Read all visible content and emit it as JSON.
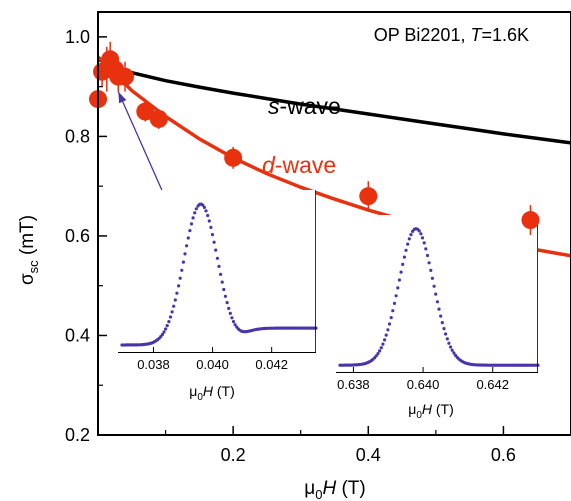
{
  "chart_data": {
    "type": "scatter",
    "title": {
      "main": "OP Bi2201, ",
      "T_symbol": "T",
      "T_value": "=1.6K"
    },
    "xlabel": {
      "mu": "μ",
      "sub": "0",
      "H": "H",
      "unit": " (T)"
    },
    "ylabel": {
      "sigma": "σ",
      "sub": "sc",
      "unit": " (mT)"
    },
    "xlim": [
      0.0,
      0.7
    ],
    "ylim": [
      0.2,
      1.05
    ],
    "x_ticks": [
      0.2,
      0.4,
      0.6
    ],
    "x_tick_labels": [
      "0.2",
      "0.4",
      "0.6"
    ],
    "y_ticks": [
      0.2,
      0.4,
      0.6,
      0.8,
      1.0
    ],
    "y_tick_labels": [
      "0.2",
      "0.4",
      "0.6",
      "0.8",
      "1.0"
    ],
    "points": [
      {
        "x": 0.0,
        "y": 0.875,
        "err": 0.03
      },
      {
        "x": 0.006,
        "y": 0.93,
        "err": 0.03
      },
      {
        "x": 0.013,
        "y": 0.935,
        "err": 0.045
      },
      {
        "x": 0.018,
        "y": 0.955,
        "err": 0.035
      },
      {
        "x": 0.025,
        "y": 0.935,
        "err": 0.03
      },
      {
        "x": 0.03,
        "y": 0.92,
        "err": 0.03
      },
      {
        "x": 0.04,
        "y": 0.92,
        "err": 0.03
      },
      {
        "x": 0.07,
        "y": 0.85,
        "err": 0.02
      },
      {
        "x": 0.09,
        "y": 0.835,
        "err": 0.02
      },
      {
        "x": 0.2,
        "y": 0.757,
        "err": 0.022
      },
      {
        "x": 0.4,
        "y": 0.68,
        "err": 0.03
      },
      {
        "x": 0.64,
        "y": 0.632,
        "err": 0.03
      }
    ],
    "series": [
      {
        "name": "s-wave",
        "label_prefix": "s",
        "label_suffix": "-wave",
        "color": "#000000",
        "x": [
          0.0,
          0.05,
          0.1,
          0.15,
          0.2,
          0.25,
          0.3,
          0.35,
          0.4,
          0.45,
          0.5,
          0.55,
          0.6,
          0.65,
          0.7
        ],
        "values": [
          0.955,
          0.928,
          0.912,
          0.899,
          0.887,
          0.876,
          0.865,
          0.855,
          0.845,
          0.835,
          0.825,
          0.815,
          0.805,
          0.796,
          0.787
        ]
      },
      {
        "name": "d-wave",
        "label_prefix": "d",
        "label_suffix": "-wave",
        "color": "#e8310f",
        "x": [
          0.0,
          0.05,
          0.1,
          0.15,
          0.2,
          0.25,
          0.3,
          0.35,
          0.4,
          0.45,
          0.5,
          0.55,
          0.6,
          0.65,
          0.7
        ],
        "values": [
          0.96,
          0.892,
          0.84,
          0.795,
          0.757,
          0.725,
          0.698,
          0.674,
          0.652,
          0.633,
          0.616,
          0.6,
          0.586,
          0.572,
          0.56
        ]
      }
    ],
    "insets": [
      {
        "x_ticks": [
          0.038,
          0.04,
          0.042
        ],
        "x_tick_labels": [
          "0.038",
          "0.040",
          "0.042"
        ],
        "xlim": [
          0.0368,
          0.0435
        ],
        "ylim": [
          0.0,
          1.15
        ],
        "peak_x": 0.0396,
        "arrow_to": {
          "x": 0.03,
          "y": 0.89
        }
      },
      {
        "x_ticks": [
          0.638,
          0.64,
          0.642
        ],
        "x_tick_labels": [
          "0.638",
          "0.640",
          "0.642"
        ],
        "xlim": [
          0.6375,
          0.6433
        ],
        "ylim": [
          0.0,
          1.15
        ],
        "peak_x": 0.6398,
        "arrow_to": {
          "x": 0.64,
          "y": 0.62
        }
      }
    ],
    "colors": {
      "data": "#e8310f",
      "inset": "#4a35a8",
      "arrow": "#4a35a8"
    }
  }
}
